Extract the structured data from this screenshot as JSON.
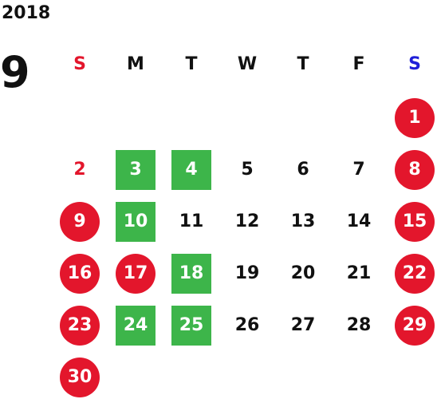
{
  "year": "2018",
  "month": "9",
  "colors": {
    "sunday_header": "#e3162c",
    "saturday_header": "#1f1fd8",
    "weekday_header": "#111111",
    "holiday_circle": "#e3162c",
    "highlight_square": "#3db54a",
    "text_default": "#111111",
    "text_red": "#e3162c"
  },
  "weekdays": [
    {
      "label": "S",
      "color": "#e3162c"
    },
    {
      "label": "M",
      "color": "#111111"
    },
    {
      "label": "T",
      "color": "#111111"
    },
    {
      "label": "W",
      "color": "#111111"
    },
    {
      "label": "T",
      "color": "#111111"
    },
    {
      "label": "F",
      "color": "#111111"
    },
    {
      "label": "S",
      "color": "#1f1fd8"
    }
  ],
  "weeks": [
    [
      null,
      null,
      null,
      null,
      null,
      null,
      {
        "day": "1",
        "style": "circle"
      }
    ],
    [
      {
        "day": "2",
        "style": "redtext"
      },
      {
        "day": "3",
        "style": "square"
      },
      {
        "day": "4",
        "style": "square"
      },
      {
        "day": "5",
        "style": "plain"
      },
      {
        "day": "6",
        "style": "plain"
      },
      {
        "day": "7",
        "style": "plain"
      },
      {
        "day": "8",
        "style": "circle"
      }
    ],
    [
      {
        "day": "9",
        "style": "circle"
      },
      {
        "day": "10",
        "style": "square"
      },
      {
        "day": "11",
        "style": "plain"
      },
      {
        "day": "12",
        "style": "plain"
      },
      {
        "day": "13",
        "style": "plain"
      },
      {
        "day": "14",
        "style": "plain"
      },
      {
        "day": "15",
        "style": "circle"
      }
    ],
    [
      {
        "day": "16",
        "style": "circle"
      },
      {
        "day": "17",
        "style": "circle"
      },
      {
        "day": "18",
        "style": "square"
      },
      {
        "day": "19",
        "style": "plain"
      },
      {
        "day": "20",
        "style": "plain"
      },
      {
        "day": "21",
        "style": "plain"
      },
      {
        "day": "22",
        "style": "circle"
      }
    ],
    [
      {
        "day": "23",
        "style": "circle"
      },
      {
        "day": "24",
        "style": "square"
      },
      {
        "day": "25",
        "style": "square"
      },
      {
        "day": "26",
        "style": "plain"
      },
      {
        "day": "27",
        "style": "plain"
      },
      {
        "day": "28",
        "style": "plain"
      },
      {
        "day": "29",
        "style": "circle"
      }
    ],
    [
      {
        "day": "30",
        "style": "circle"
      },
      null,
      null,
      null,
      null,
      null,
      null
    ]
  ]
}
